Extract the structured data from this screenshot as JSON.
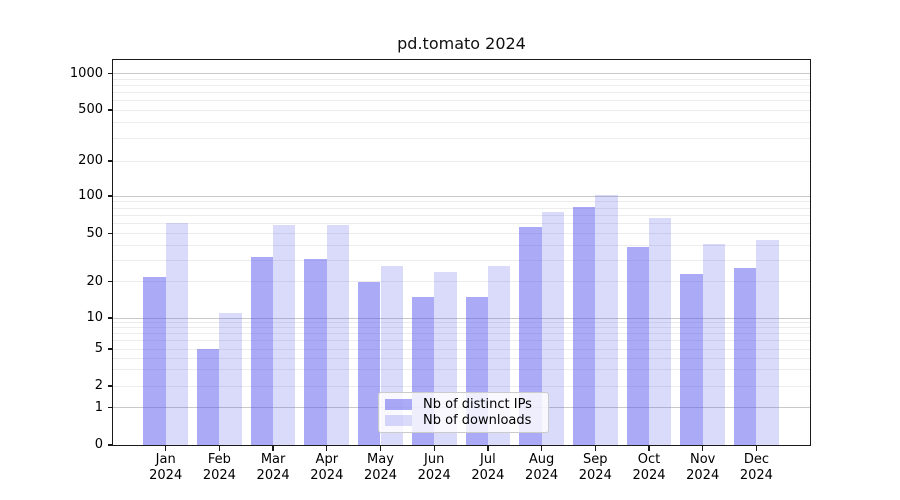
{
  "chart_data": {
    "type": "bar",
    "title": "pd.tomato 2024",
    "categories": [
      "Jan",
      "Feb",
      "Mar",
      "Apr",
      "May",
      "Jun",
      "Jul",
      "Aug",
      "Sep",
      "Oct",
      "Nov",
      "Dec"
    ],
    "category_year": "2024",
    "series": [
      {
        "name": "Nb of distinct IPs",
        "color": "rgba(85,85,238,0.5)",
        "values": [
          22,
          5,
          32,
          31,
          20,
          15,
          15,
          56,
          82,
          39,
          23,
          26
        ]
      },
      {
        "name": "Nb of downloads",
        "color": "rgba(85,85,238,0.22)",
        "values": [
          61,
          11,
          58,
          59,
          27,
          24,
          27,
          74,
          102,
          66,
          41,
          44
        ]
      }
    ],
    "xlabel": "",
    "ylabel": "",
    "yscale": "symlog",
    "ytick_labels": [
      "0",
      "1",
      "2",
      "5",
      "10",
      "20",
      "50",
      "100",
      "200",
      "500",
      "1000"
    ],
    "ylim": [
      0,
      1300
    ],
    "grid": "both",
    "legend_position": "lower-center",
    "colors": {
      "major_grid": "#c9c9c9",
      "minor_grid": "#ececec",
      "axis": "#1a1a1a",
      "background": "#ffffff"
    }
  }
}
